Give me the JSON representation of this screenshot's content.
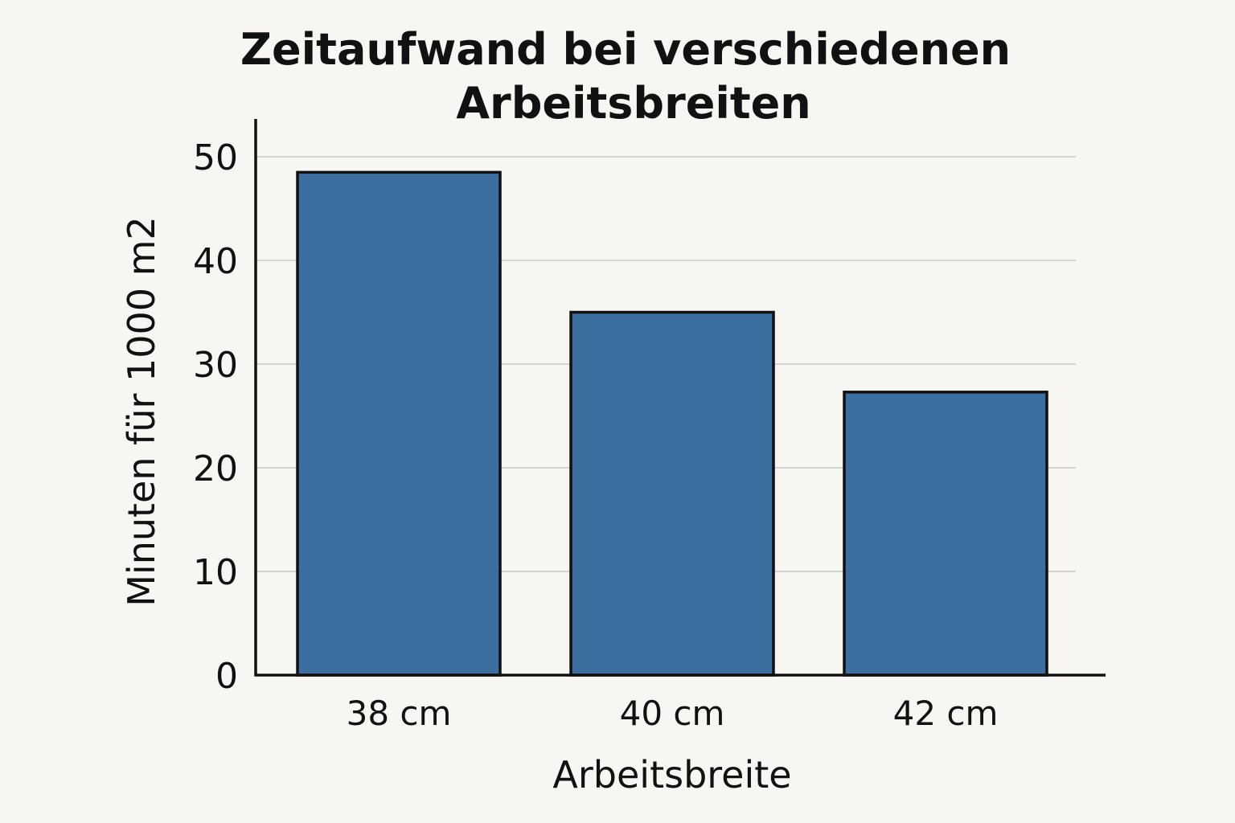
{
  "chart_data": {
    "type": "bar",
    "title_lines": [
      "Zeitaufwand bei verschiedenen",
      "Arbeitsbreiten"
    ],
    "xlabel": "Arbeitsbreite",
    "ylabel": "Minuten für 1000 m2",
    "categories": [
      "38 cm",
      "40 cm",
      "42 cm"
    ],
    "values": [
      48.5,
      35,
      27.3
    ],
    "ylim": [
      0,
      50
    ],
    "yticks": [
      0,
      10,
      20,
      30,
      40,
      50
    ],
    "ytick_labels": [
      "0",
      "10",
      "20",
      "30",
      "40",
      "50"
    ],
    "grid": "horizontal",
    "legend": "none",
    "colors": {
      "bar_fill": "#3c6e9f",
      "bar_stroke": "#111111",
      "grid": "#c8c8c8",
      "axis": "#111111",
      "background": "#f8f6f3"
    }
  }
}
